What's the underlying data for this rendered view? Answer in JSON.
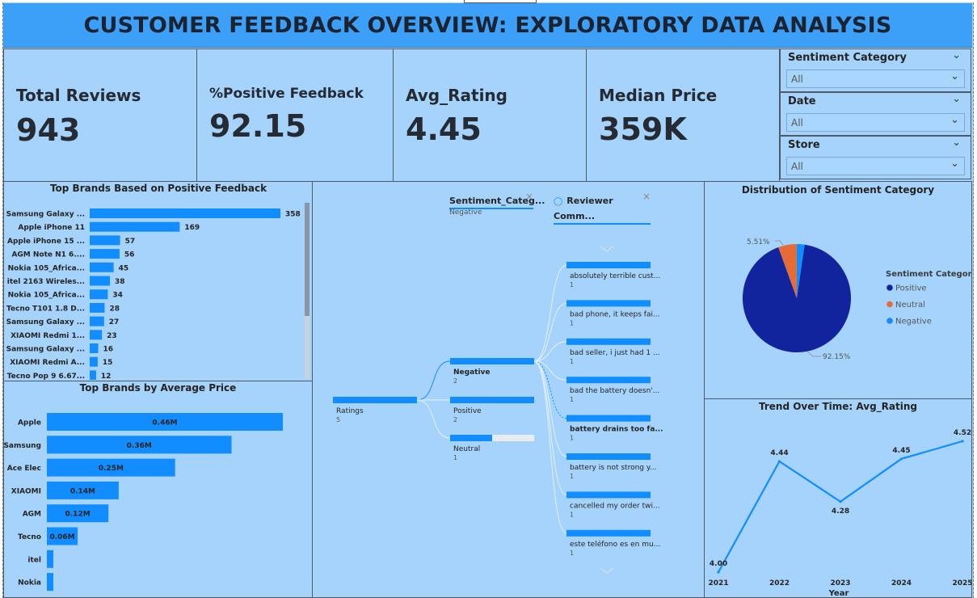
{
  "title": "CUSTOMER FEEDBACK OVERVIEW: EXPLORATORY DATA ANALYSIS",
  "kpis": [
    {
      "label": "Total Reviews",
      "value": "943"
    },
    {
      "label": "%Positive Feedback",
      "value": "92.15"
    },
    {
      "label": "Avg_Rating",
      "value": "4.45"
    },
    {
      "label": "Median Price",
      "value": "359K"
    }
  ],
  "slicers": [
    {
      "title": "Sentiment Category",
      "value": "All"
    },
    {
      "title": "Date",
      "value": "All"
    },
    {
      "title": "Store",
      "value": "All"
    }
  ],
  "icons": {
    "chevron": "chevron-down-icon",
    "close": "close-icon",
    "lightbulb": "lightbulb-icon",
    "scroll_up": "chevron-up-icon",
    "scroll_down": "chevron-down-icon"
  },
  "colors": {
    "bar": "#118dff",
    "positive": "#12239e",
    "neutral": "#e66c37",
    "negative": "#118dff",
    "background": "#a5d3fb",
    "title_bar": "#3da0f8"
  },
  "chart_data": [
    {
      "type": "bar",
      "title": "Top Brands Based on Positive Feedback",
      "orientation": "horizontal",
      "categories": [
        "Samsung Galaxy ...",
        "Apple iPhone 11",
        "Apple iPhone 15 ...",
        "AGM Note N1 6....",
        "Nokia 105_Africa...",
        "itel 2163 Wireles...",
        "Nokia 105_Africa...",
        "Tecno T101 1.8 D...",
        "Samsung Galaxy ...",
        "XIAOMI Redmi 1...",
        "Samsung Galaxy ...",
        "XIAOMI Redmi A...",
        "Tecno Pop 9 6.67..."
      ],
      "values": [
        358,
        169,
        57,
        56,
        45,
        38,
        34,
        28,
        27,
        23,
        16,
        15,
        12
      ]
    },
    {
      "type": "bar",
      "title": "Top Brands by Average Price",
      "orientation": "horizontal",
      "categories": [
        "Apple",
        "Samsung",
        "Ace Elec",
        "XIAOMI",
        "AGM",
        "Tecno",
        "itel",
        "Nokia"
      ],
      "values": [
        0.46,
        0.36,
        0.25,
        0.14,
        0.12,
        0.06,
        0.01,
        0.01
      ],
      "labels": [
        "0.46M",
        "0.36M",
        "0.25M",
        "0.14M",
        "0.12M",
        "0.06M",
        "",
        ""
      ]
    },
    {
      "type": "pie",
      "title": "Distribution of Sentiment Category",
      "legend_title": "Sentiment Category",
      "legend_position": "right",
      "categories": [
        "Positive",
        "Neutral",
        "Negative"
      ],
      "values": [
        92.15,
        5.51,
        2.34
      ],
      "labels": [
        "92.15%",
        "5.51%",
        ""
      ]
    },
    {
      "type": "line",
      "title": "Trend Over Time: Avg_Rating",
      "xlabel": "Year",
      "x": [
        "2021",
        "2022",
        "2023",
        "2024",
        "2025"
      ],
      "values": [
        4.0,
        4.44,
        4.28,
        4.45,
        4.52
      ],
      "labels": [
        "4.00",
        "4.44",
        "4.28",
        "4.45",
        "4.52"
      ],
      "ylim": [
        4.0,
        4.52
      ]
    }
  ],
  "decomposition": {
    "header_filter": "Sentiment_Categ...",
    "header_filter_value": "Negative",
    "header_comments": "Reviewer Comm...",
    "root": {
      "label": "Ratings",
      "value": "5",
      "fill": 1.0
    },
    "level1": [
      {
        "label": "Negative",
        "value": "2",
        "fill": 1.0,
        "selected": true
      },
      {
        "label": "Positive",
        "value": "2",
        "fill": 1.0,
        "selected": false
      },
      {
        "label": "Neutral",
        "value": "1",
        "fill": 0.5,
        "selected": false
      }
    ],
    "level2": [
      {
        "label": "absolutely terrible cust...",
        "value": "1",
        "bold": false
      },
      {
        "label": "bad phone, it keeps fai...",
        "value": "1",
        "bold": false
      },
      {
        "label": "bad seller, i just had 1 ...",
        "value": "1",
        "bold": false
      },
      {
        "label": "bad the battery doesn'...",
        "value": "1",
        "bold": false
      },
      {
        "label": "battery drains too fa...",
        "value": "1",
        "bold": true
      },
      {
        "label": "battery is not strong y...",
        "value": "1",
        "bold": false
      },
      {
        "label": "cancelled my order twi...",
        "value": "1",
        "bold": false
      },
      {
        "label": "este teléfono es en mu...",
        "value": "1",
        "bold": false
      }
    ]
  }
}
